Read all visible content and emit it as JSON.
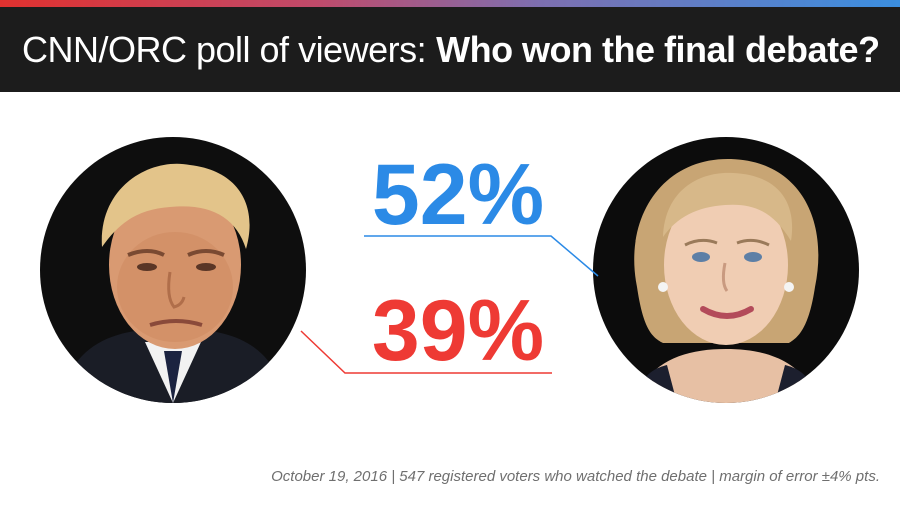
{
  "header": {
    "title_lead": "CNN/ORC poll of viewers:",
    "title_bold": "Who won the final debate?"
  },
  "chart_data": {
    "type": "bar",
    "unit": "%",
    "series": [
      {
        "values": [
          52
        ],
        "label": "52%",
        "color": "#2b8ae6"
      },
      {
        "values": [
          39
        ],
        "label": "39%",
        "color": "#ee3a34"
      }
    ],
    "ylim": [
      0,
      100
    ],
    "grid": false,
    "legend": "none"
  },
  "footer": {
    "note": "October 19, 2016 | 547 registered voters who watched the debate | margin of error ±4% pts."
  }
}
